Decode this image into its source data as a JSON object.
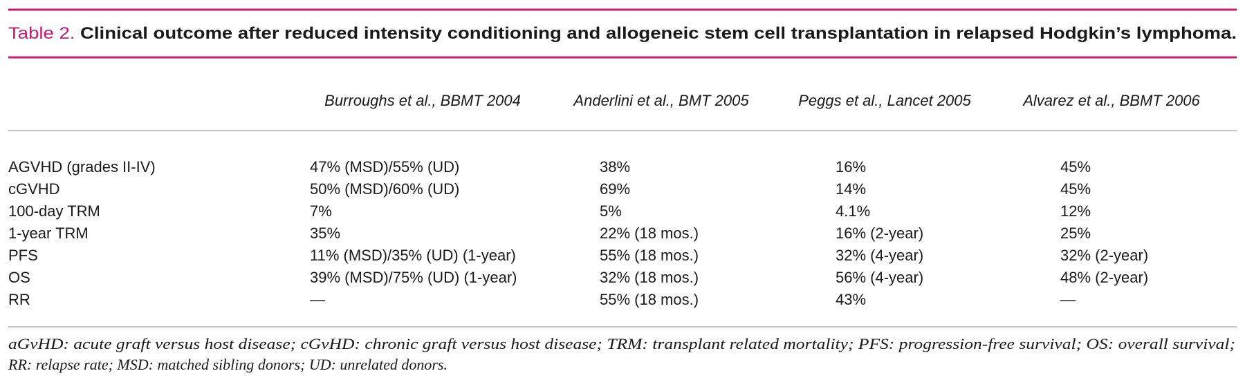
{
  "title": {
    "label": "Table 2.",
    "text": "Clinical outcome after reduced intensity conditioning and allogeneic stem cell transplantation in relapsed Hodgkin’s lymphoma."
  },
  "table": {
    "columns": [
      "Burroughs et al., BBMT 2004",
      "Anderlini et al., BMT 2005",
      "Peggs et al., Lancet 2005",
      "Alvarez et al., BBMT 2006"
    ],
    "rows": [
      {
        "label": "AGVHD (grades II-IV)",
        "cells": [
          "47% (MSD)/55% (UD)",
          "38%",
          "16%",
          "45%"
        ]
      },
      {
        "label": "cGVHD",
        "cells": [
          "50% (MSD)/60% (UD)",
          "69%",
          "14%",
          "45%"
        ]
      },
      {
        "label": "100-day TRM",
        "cells": [
          "7%",
          "5%",
          "4.1%",
          "12%"
        ]
      },
      {
        "label": "1-year TRM",
        "cells": [
          "35%",
          "22% (18 mos.)",
          "16% (2-year)",
          "25%"
        ]
      },
      {
        "label": "PFS",
        "cells": [
          "11% (MSD)/35% (UD) (1-year)",
          "55% (18 mos.)",
          "32% (4-year)",
          "32% (2-year)"
        ]
      },
      {
        "label": "OS",
        "cells": [
          "39% (MSD)/75% (UD) (1-year)",
          "32% (18 mos.)",
          "56% (4-year)",
          "48% (2-year)"
        ]
      },
      {
        "label": "RR",
        "cells": [
          "—",
          "55% (18 mos.)",
          "43%",
          "—"
        ]
      }
    ]
  },
  "footnote": [
    "aGvHD: acute graft versus host disease; cGvHD: chronic graft versus host disease; TRM: transplant related mortality; PFS: progression-free survival; OS: overall survival;",
    "RR: relapse rate; MSD: matched sibling donors; UD: unrelated donors."
  ]
}
